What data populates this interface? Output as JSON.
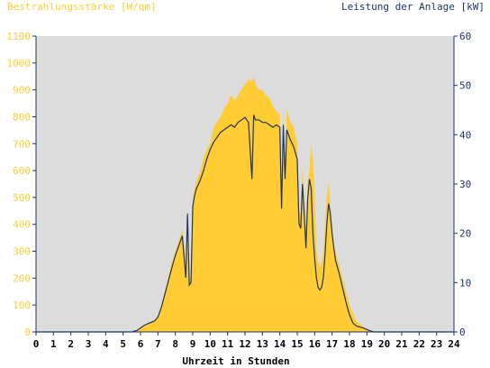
{
  "chart_data": {
    "type": "area",
    "left_axis_label": "Bestrahlungsstärke [W/qm]",
    "right_axis_label": "Leistung der Anlage [kW]",
    "xlabel": "Uhrzeit in Stunden",
    "x_ticks": [
      "0",
      "1",
      "2",
      "3",
      "4",
      "5",
      "6",
      "7",
      "8",
      "9",
      "10",
      "11",
      "12",
      "13",
      "14",
      "15",
      "16",
      "17",
      "18",
      "19",
      "20",
      "21",
      "22",
      "23",
      "24"
    ],
    "left_ticks": [
      "0",
      "100",
      "200",
      "300",
      "400",
      "500",
      "600",
      "700",
      "800",
      "900",
      "1000",
      "1100"
    ],
    "right_ticks": [
      "0",
      "10",
      "20",
      "30",
      "40",
      "50",
      "60"
    ],
    "xlim": [
      0,
      24
    ],
    "ylim_left": [
      0,
      1100
    ],
    "ylim_right": [
      0,
      60
    ],
    "grid": false,
    "colors": {
      "plot_bg": "#dcdcdc",
      "irradiance_fill": "#ffcc33",
      "power_line": "#1f3566",
      "left_axis_text": "#ffcc33",
      "right_axis_text": "#1f3566",
      "axis_text": "#000000"
    },
    "series": [
      {
        "x": [
          0,
          5.5,
          5.8,
          6.0,
          6.2,
          6.5,
          6.8,
          7.0,
          7.2,
          7.5,
          7.8,
          8.0,
          8.2,
          8.4,
          8.6,
          8.7,
          8.8,
          8.9,
          9.0,
          9.1,
          9.2,
          9.4,
          9.6,
          9.8,
          10.0,
          10.2,
          10.4,
          10.6,
          10.8,
          11.0,
          11.2,
          11.4,
          11.6,
          11.8,
          12.0,
          12.2,
          12.4,
          12.5,
          12.6,
          12.8,
          13.0,
          13.2,
          13.4,
          13.6,
          13.8,
          14.0,
          14.1,
          14.2,
          14.3,
          14.4,
          14.6,
          14.8,
          15.0,
          15.1,
          15.2,
          15.3,
          15.4,
          15.5,
          15.6,
          15.7,
          15.8,
          15.9,
          16.0,
          16.1,
          16.2,
          16.3,
          16.4,
          16.5,
          16.6,
          16.7,
          16.8,
          16.9,
          17.0,
          17.1,
          17.2,
          17.4,
          17.6,
          17.8,
          18.0,
          18.2,
          18.4,
          18.6,
          18.8,
          19.0,
          19.2,
          19.4,
          19.6,
          19.8,
          20.0,
          24
        ],
        "values": [
          0,
          0,
          5,
          15,
          25,
          35,
          45,
          60,
          100,
          180,
          260,
          300,
          340,
          380,
          260,
          430,
          190,
          200,
          500,
          530,
          560,
          590,
          640,
          680,
          700,
          760,
          780,
          800,
          830,
          850,
          880,
          860,
          880,
          900,
          920,
          940,
          930,
          950,
          920,
          900,
          900,
          880,
          870,
          840,
          820,
          810,
          500,
          820,
          600,
          830,
          780,
          760,
          700,
          450,
          440,
          620,
          500,
          380,
          560,
          600,
          700,
          640,
          500,
          300,
          260,
          240,
          260,
          300,
          400,
          500,
          560,
          470,
          400,
          330,
          300,
          250,
          200,
          150,
          100,
          70,
          40,
          30,
          20,
          10,
          5,
          2,
          0,
          0,
          0,
          0
        ]
      },
      {
        "x": [
          0,
          5.5,
          5.8,
          6.0,
          6.2,
          6.5,
          6.8,
          7.0,
          7.2,
          7.5,
          7.8,
          8.0,
          8.2,
          8.4,
          8.6,
          8.7,
          8.8,
          8.9,
          9.0,
          9.1,
          9.2,
          9.4,
          9.6,
          9.8,
          10.0,
          10.2,
          10.4,
          10.6,
          10.8,
          11.0,
          11.2,
          11.4,
          11.6,
          11.8,
          12.0,
          12.2,
          12.4,
          12.5,
          12.6,
          12.8,
          13.0,
          13.2,
          13.4,
          13.6,
          13.8,
          14.0,
          14.1,
          14.2,
          14.3,
          14.4,
          14.6,
          14.8,
          15.0,
          15.1,
          15.2,
          15.3,
          15.4,
          15.5,
          15.6,
          15.7,
          15.8,
          15.9,
          16.0,
          16.1,
          16.2,
          16.3,
          16.4,
          16.5,
          16.6,
          16.7,
          16.8,
          16.9,
          17.0,
          17.1,
          17.2,
          17.4,
          17.6,
          17.8,
          18.0,
          18.2,
          18.4,
          18.6,
          18.8,
          19.0,
          19.2,
          19.4,
          19.6,
          19.8,
          20.0,
          24
        ],
        "values": [
          0,
          0,
          0.3,
          0.8,
          1.3,
          1.8,
          2.2,
          3,
          5,
          9,
          13,
          15.5,
          17.5,
          19.5,
          11,
          24,
          9.5,
          10,
          25.5,
          27.5,
          29,
          30.5,
          32.5,
          35,
          37,
          38.5,
          39.5,
          40.5,
          41,
          41.5,
          42,
          41.5,
          42.5,
          43,
          43.5,
          42.5,
          31,
          44,
          43,
          43,
          42.5,
          42.5,
          42,
          41.5,
          42,
          41.5,
          25,
          42,
          31,
          41,
          39,
          37.5,
          35,
          22,
          21,
          30,
          24,
          17,
          27,
          31,
          29,
          20,
          15,
          11,
          9,
          8.5,
          9,
          11,
          16,
          22,
          26,
          24,
          20,
          17,
          14.5,
          12,
          9,
          6,
          3.5,
          1.8,
          1.2,
          1,
          0.8,
          0.5,
          0.2,
          0,
          0,
          0,
          0,
          0
        ]
      }
    ]
  }
}
